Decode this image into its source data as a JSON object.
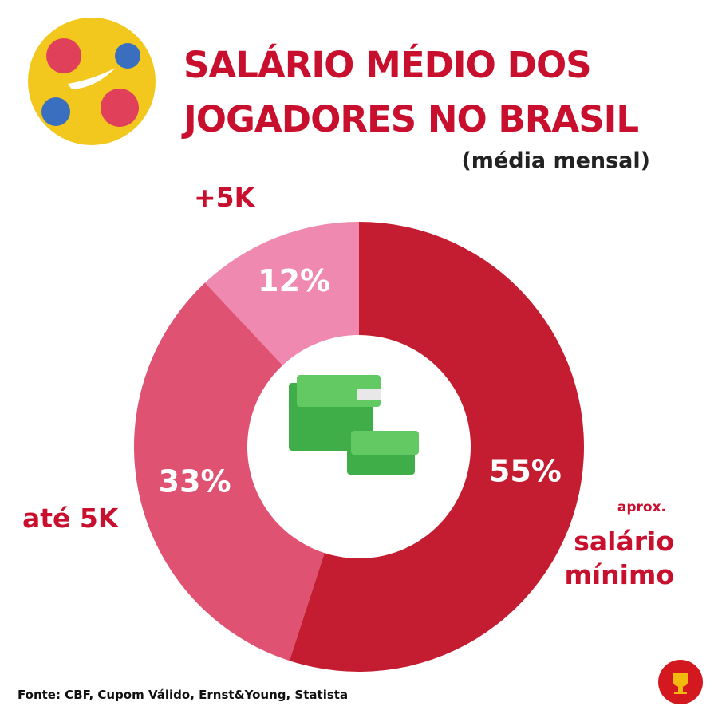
{
  "chart_data": {
    "type": "donut",
    "title": "SALÁRIO MÉDIO DOS JOGADORES NO BRASIL",
    "subtitle": "(média mensal)",
    "categories": [
      "salário mínimo",
      "até 5K",
      "+5K"
    ],
    "annotations": [
      "aprox."
    ],
    "values": [
      55,
      33,
      12
    ],
    "value_labels": [
      "55%",
      "33%",
      "12%"
    ],
    "colors": [
      "#c41c30",
      "#df5272",
      "#ef89b0"
    ],
    "source": "Fonte: CBF, Cupom Válido, Ernst&Young, Statista"
  }
}
